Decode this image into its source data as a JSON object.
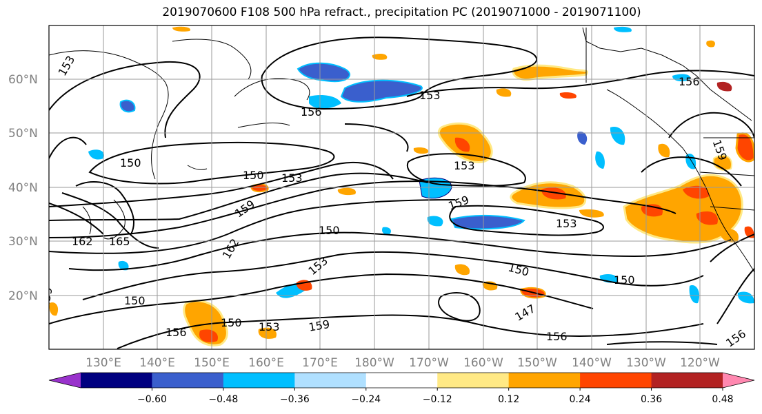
{
  "title": "2019070600 F108 500 hPa refract., precipitation PC (2019071000 - 2019071100)",
  "latitude_labels": [
    "60°N",
    "50°N",
    "40°N",
    "30°N",
    "20°N"
  ],
  "longitude_labels": [
    "130°E",
    "140°E",
    "150°E",
    "160°E",
    "170°E",
    "180°W",
    "170°W",
    "160°W",
    "150°W",
    "140°W",
    "130°W",
    "120°W"
  ],
  "contour_labels": [
    "153",
    "156",
    "153",
    "156",
    "150",
    "150",
    "153",
    "153",
    "159",
    "165",
    "162",
    "162",
    "150",
    "159",
    "150",
    "153",
    "159",
    "150",
    "153",
    "150",
    "150",
    "147",
    "156",
    "153",
    "156",
    "159",
    "156",
    "159"
  ],
  "colorbar": {
    "tick_labels": [
      "−0.60",
      "−0.48",
      "−0.36",
      "−0.24",
      "−0.12",
      "0.12",
      "0.24",
      "0.36",
      "0.48",
      "0.60"
    ],
    "colors": [
      "#9932cc",
      "#000080",
      "#3a5fcd",
      "#00bfff",
      "#b0e0ff",
      "#ffffff",
      "#ffe985",
      "#ffa500",
      "#ff4500",
      "#b22222",
      "#ff88b0"
    ]
  }
}
